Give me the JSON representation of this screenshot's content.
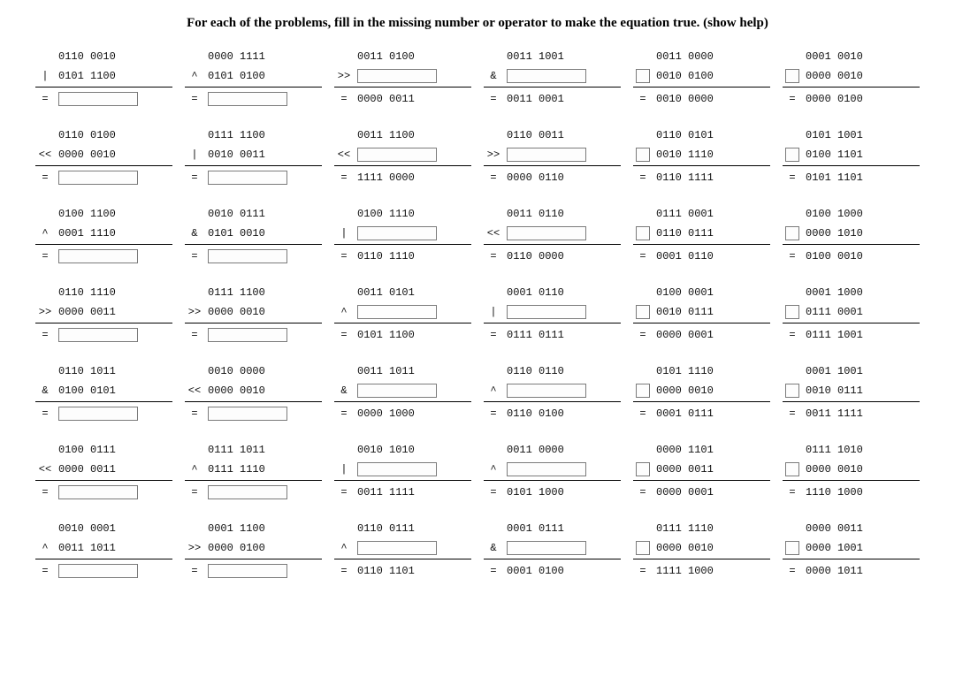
{
  "title": "For each of the problems, fill in the missing number or operator to make the equation true.",
  "help_text": "(show help)",
  "eq_symbol": "=",
  "layout": {
    "rows": 7,
    "cols": 6
  },
  "colors": {
    "background": "#ffffff",
    "text": "#111111",
    "border": "#7a7a7a"
  },
  "font": {
    "mono": "Courier New",
    "title": "Georgia",
    "title_size_pt": 11,
    "cell_size_pt": 9
  },
  "problems": [
    [
      {
        "a": "0110 0010",
        "op": "|",
        "b": "0101 1100",
        "r": null
      },
      {
        "a": "0000 1111",
        "op": "^",
        "b": "0101 0100",
        "r": null
      },
      {
        "a": "0011 0100",
        "op": ">>",
        "b": null,
        "r": "0000 0011"
      },
      {
        "a": "0011 1001",
        "op": "&",
        "b": null,
        "r": "0011 0001"
      },
      {
        "a": "0011 0000",
        "op": null,
        "b": "0010 0100",
        "r": "0010 0000"
      },
      {
        "a": "0001 0010",
        "op": null,
        "b": "0000 0010",
        "r": "0000 0100"
      }
    ],
    [
      {
        "a": "0110 0100",
        "op": "<<",
        "b": "0000 0010",
        "r": null
      },
      {
        "a": "0111 1100",
        "op": "|",
        "b": "0010 0011",
        "r": null
      },
      {
        "a": "0011 1100",
        "op": "<<",
        "b": null,
        "r": "1111 0000"
      },
      {
        "a": "0110 0011",
        "op": ">>",
        "b": null,
        "r": "0000 0110"
      },
      {
        "a": "0110 0101",
        "op": null,
        "b": "0010 1110",
        "r": "0110 1111"
      },
      {
        "a": "0101 1001",
        "op": null,
        "b": "0100 1101",
        "r": "0101 1101"
      }
    ],
    [
      {
        "a": "0100 1100",
        "op": "^",
        "b": "0001 1110",
        "r": null
      },
      {
        "a": "0010 0111",
        "op": "&",
        "b": "0101 0010",
        "r": null
      },
      {
        "a": "0100 1110",
        "op": "|",
        "b": null,
        "r": "0110 1110"
      },
      {
        "a": "0011 0110",
        "op": "<<",
        "b": null,
        "r": "0110 0000"
      },
      {
        "a": "0111 0001",
        "op": null,
        "b": "0110 0111",
        "r": "0001 0110"
      },
      {
        "a": "0100 1000",
        "op": null,
        "b": "0000 1010",
        "r": "0100 0010"
      }
    ],
    [
      {
        "a": "0110 1110",
        "op": ">>",
        "b": "0000 0011",
        "r": null
      },
      {
        "a": "0111 1100",
        "op": ">>",
        "b": "0000 0010",
        "r": null
      },
      {
        "a": "0011 0101",
        "op": "^",
        "b": null,
        "r": "0101 1100"
      },
      {
        "a": "0001 0110",
        "op": "|",
        "b": null,
        "r": "0111 0111"
      },
      {
        "a": "0100 0001",
        "op": null,
        "b": "0010 0111",
        "r": "0000 0001"
      },
      {
        "a": "0001 1000",
        "op": null,
        "b": "0111 0001",
        "r": "0111 1001"
      }
    ],
    [
      {
        "a": "0110 1011",
        "op": "&",
        "b": "0100 0101",
        "r": null
      },
      {
        "a": "0010 0000",
        "op": "<<",
        "b": "0000 0010",
        "r": null
      },
      {
        "a": "0011 1011",
        "op": "&",
        "b": null,
        "r": "0000 1000"
      },
      {
        "a": "0110 0110",
        "op": "^",
        "b": null,
        "r": "0110 0100"
      },
      {
        "a": "0101 1110",
        "op": null,
        "b": "0000 0010",
        "r": "0001 0111"
      },
      {
        "a": "0001 1001",
        "op": null,
        "b": "0010 0111",
        "r": "0011 1111"
      }
    ],
    [
      {
        "a": "0100 0111",
        "op": "<<",
        "b": "0000 0011",
        "r": null
      },
      {
        "a": "0111 1011",
        "op": "^",
        "b": "0111 1110",
        "r": null
      },
      {
        "a": "0010 1010",
        "op": "|",
        "b": null,
        "r": "0011 1111"
      },
      {
        "a": "0011 0000",
        "op": "^",
        "b": null,
        "r": "0101 1000"
      },
      {
        "a": "0000 1101",
        "op": null,
        "b": "0000 0011",
        "r": "0000 0001"
      },
      {
        "a": "0111 1010",
        "op": null,
        "b": "0000 0010",
        "r": "1110 1000"
      }
    ],
    [
      {
        "a": "0010 0001",
        "op": "^",
        "b": "0011 1011",
        "r": null
      },
      {
        "a": "0001 1100",
        "op": ">>",
        "b": "0000 0100",
        "r": null
      },
      {
        "a": "0110 0111",
        "op": "^",
        "b": null,
        "r": "0110 1101"
      },
      {
        "a": "0001 0111",
        "op": "&",
        "b": null,
        "r": "0001 0100"
      },
      {
        "a": "0111 1110",
        "op": null,
        "b": "0000 0010",
        "r": "1111 1000"
      },
      {
        "a": "0000 0011",
        "op": null,
        "b": "0000 1001",
        "r": "0000 1011"
      }
    ]
  ]
}
